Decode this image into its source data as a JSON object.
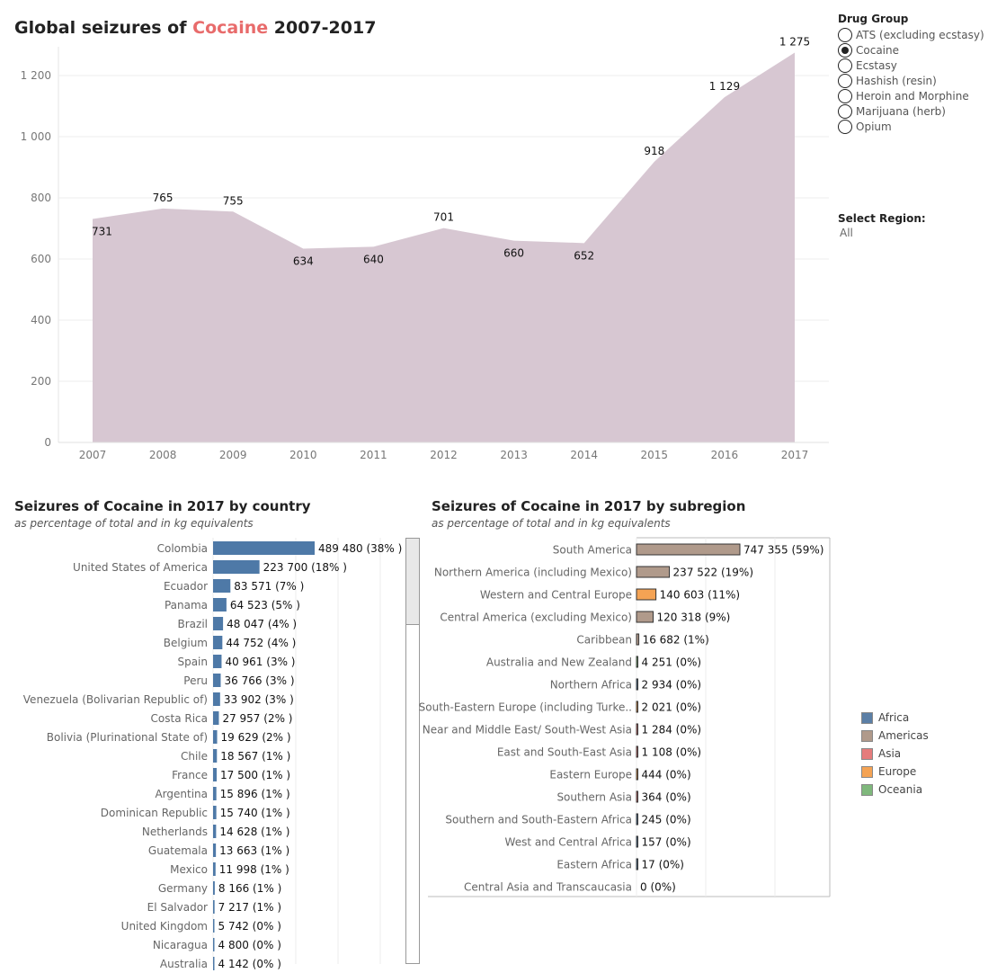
{
  "main_title": {
    "prefix": "Global seizures of",
    "drug": "Cocaine",
    "suffix": "2007-2017"
  },
  "drug_group": {
    "heading": "Drug Group",
    "options": [
      "ATS (excluding ecstasy)",
      "Cocaine",
      "Ecstasy",
      "Hashish (resin)",
      "Heroin and Morphine",
      "Marijuana (herb)",
      "Opium"
    ],
    "selected": "Cocaine"
  },
  "region": {
    "heading": "Select Region:",
    "value": "All"
  },
  "country_panel": {
    "title": "Seizures of Cocaine  in 2017 by country",
    "note": "as percentage of total and in kg equivalents"
  },
  "subregion_panel": {
    "title": "Seizures of Cocaine in 2017 by subregion",
    "note": "as percentage of total and in kg equivalents"
  },
  "legend": [
    {
      "name": "Africa",
      "color": "#5b7fa6"
    },
    {
      "name": "Americas",
      "color": "#b09a8b"
    },
    {
      "name": "Asia",
      "color": "#e57c7c"
    },
    {
      "name": "Europe",
      "color": "#f4a354"
    },
    {
      "name": "Oceania",
      "color": "#7fb87c"
    }
  ],
  "chart_data": [
    {
      "type": "area",
      "title": "Global seizures of Cocaine 2007-2017",
      "x": [
        "2007",
        "2008",
        "2009",
        "2010",
        "2011",
        "2012",
        "2013",
        "2014",
        "2015",
        "2016",
        "2017"
      ],
      "values": [
        731,
        765,
        755,
        634,
        640,
        701,
        660,
        652,
        918,
        1129,
        1275
      ],
      "labels": [
        "731",
        "765",
        "755",
        "634",
        "640",
        "701",
        "660",
        "652",
        "918",
        "1 129",
        "1 275"
      ],
      "y_ticks": [
        0,
        200,
        400,
        600,
        800,
        1000,
        1200
      ],
      "y_tick_labels": [
        "0",
        "200",
        "400",
        "600",
        "800",
        "1 000",
        "1 200"
      ],
      "ylim": [
        0,
        1300
      ],
      "color": "#d7c7d2",
      "grid": true
    },
    {
      "type": "bar",
      "orientation": "horizontal",
      "title": "Seizures of Cocaine  in 2017 by country",
      "subtitle": "as percentage of total and in kg equivalents",
      "categories": [
        "Colombia",
        "United States of America",
        "Ecuador",
        "Panama",
        "Brazil",
        "Belgium",
        "Spain",
        "Peru",
        "Venezuela (Bolivarian Republic of)",
        "Costa Rica",
        "Bolivia (Plurinational State of)",
        "Chile",
        "France",
        "Argentina",
        "Dominican Republic",
        "Netherlands",
        "Guatemala",
        "Mexico",
        "Germany",
        "El Salvador",
        "United Kingdom",
        "Nicaragua",
        "Australia"
      ],
      "values": [
        489480,
        223700,
        83571,
        64523,
        48047,
        44752,
        40961,
        36766,
        33902,
        27957,
        19629,
        18567,
        17500,
        15896,
        15740,
        14628,
        13663,
        11998,
        8166,
        7217,
        5742,
        4800,
        4142
      ],
      "labels": [
        "489 480 (38% )",
        "223 700 (18% )",
        "83 571 (7% )",
        "64 523 (5% )",
        "48 047 (4% )",
        "44 752 (4% )",
        "40 961 (3% )",
        "36 766 (3% )",
        "33 902 (3% )",
        "27 957 (2% )",
        "19 629 (2% )",
        "18 567 (1% )",
        "17 500 (1% )",
        "15 896 (1% )",
        "15 740 (1% )",
        "14 628 (1% )",
        "13 663 (1% )",
        "11 998 (1% )",
        "8 166 (1% )",
        "7 217 (1% )",
        "5 742 (0% )",
        "4 800 (0% )",
        "4 142 (0% )"
      ],
      "color": "#4e79a7"
    },
    {
      "type": "bar",
      "orientation": "horizontal",
      "title": "Seizures of Cocaine in 2017 by subregion",
      "subtitle": "as percentage of total and in kg equivalents",
      "categories": [
        "South America",
        "Northern America (including Mexico)",
        "Western and Central Europe",
        "Central America (excluding Mexico)",
        "Caribbean",
        "Australia and New Zealand",
        "Northern Africa",
        "South-Eastern Europe (including Turke..",
        "Near and Middle East/ South-West Asia",
        "East and South-East Asia",
        "Eastern Europe",
        "Southern Asia",
        "Southern and South-Eastern Africa",
        "West and Central Africa",
        "Eastern Africa",
        "Central Asia and Transcaucasia"
      ],
      "values": [
        747355,
        237522,
        140603,
        120318,
        16682,
        4251,
        2934,
        2021,
        1284,
        1108,
        444,
        364,
        245,
        157,
        17,
        0
      ],
      "labels": [
        "747 355 (59%)",
        "237 522 (19%)",
        "140 603 (11%)",
        "120 318 (9%)",
        "16 682 (1%)",
        "4 251 (0%)",
        "2 934 (0%)",
        "2 021 (0%)",
        "1 284 (0%)",
        "1 108 (0%)",
        "444 (0%)",
        "364 (0%)",
        "245 (0%)",
        "157 (0%)",
        "17 (0%)",
        "0 (0%)"
      ],
      "groups": [
        "Americas",
        "Americas",
        "Europe",
        "Americas",
        "Americas",
        "Oceania",
        "Africa",
        "Europe",
        "Asia",
        "Asia",
        "Europe",
        "Asia",
        "Africa",
        "Africa",
        "Africa",
        "Asia"
      ],
      "legend": {
        "title": "",
        "entries": [
          "Africa",
          "Americas",
          "Asia",
          "Europe",
          "Oceania"
        ],
        "placement": "right"
      }
    }
  ]
}
